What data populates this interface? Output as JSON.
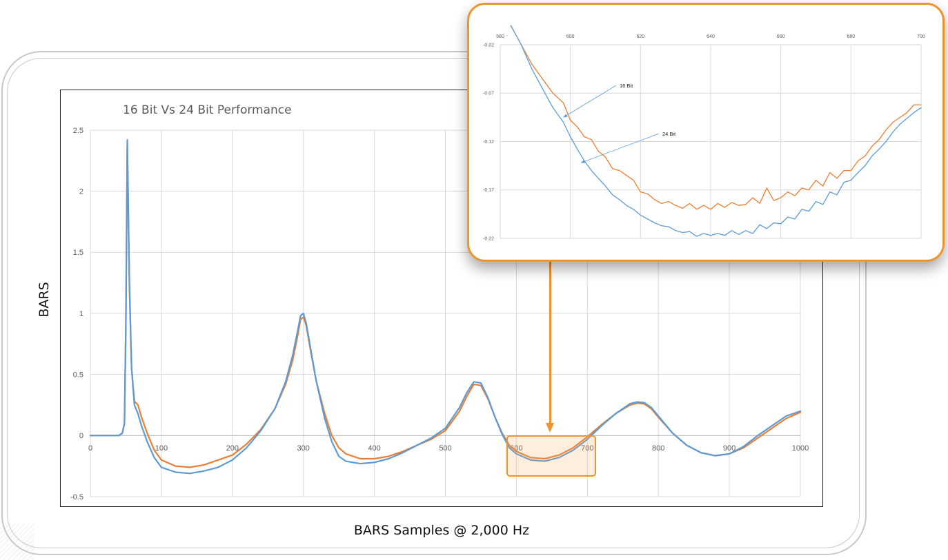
{
  "colors": {
    "bit16": "#ED7D31",
    "bit24": "#5B9BD5",
    "accent": "#F0932B",
    "grid": "#D9D9D9"
  },
  "main_chart": {
    "title": "16 Bit Vs 24 Bit Performance",
    "ylabel": "BARS",
    "xlabel": "BARS Samples @ 2,000 Hz"
  },
  "chart_data": [
    {
      "type": "line",
      "title": "16 Bit Vs 24 Bit Performance",
      "xlabel": "BARS Samples @ 2,000 Hz",
      "ylabel": "BARS",
      "xlim": [
        0,
        1000
      ],
      "ylim": [
        -0.5,
        2.5
      ],
      "xticks": [
        "0",
        "100",
        "200",
        "300",
        "400",
        "500",
        "600",
        "700",
        "800",
        "900",
        "1000"
      ],
      "yticks": [
        "-0.5",
        "0",
        "0.5",
        "1",
        "1.5",
        "2",
        "2.5"
      ],
      "grid": true,
      "series": [
        {
          "color": "#ED7D31",
          "x": [
            0,
            20,
            40,
            45,
            48,
            50,
            52,
            55,
            58,
            62,
            67,
            72,
            80,
            90,
            100,
            120,
            140,
            160,
            180,
            200,
            220,
            240,
            260,
            275,
            285,
            292,
            296,
            300,
            304,
            310,
            318,
            330,
            340,
            350,
            360,
            380,
            400,
            420,
            440,
            460,
            480,
            500,
            520,
            530,
            540,
            550,
            560,
            570,
            580,
            590,
            600,
            620,
            640,
            660,
            680,
            700,
            720,
            740,
            760,
            770,
            780,
            790,
            800,
            820,
            840,
            860,
            880,
            900,
            920,
            940,
            960,
            980,
            1000
          ],
          "values": [
            0.0,
            0.0,
            0.0,
            0.02,
            0.1,
            0.9,
            2.38,
            1.2,
            0.55,
            0.28,
            0.25,
            0.15,
            0.02,
            -0.12,
            -0.2,
            -0.25,
            -0.26,
            -0.24,
            -0.2,
            -0.16,
            -0.07,
            0.05,
            0.22,
            0.42,
            0.62,
            0.82,
            0.95,
            0.97,
            0.9,
            0.7,
            0.45,
            0.18,
            0.0,
            -0.1,
            -0.15,
            -0.19,
            -0.19,
            -0.17,
            -0.13,
            -0.08,
            -0.03,
            0.04,
            0.2,
            0.32,
            0.42,
            0.41,
            0.3,
            0.15,
            0.02,
            -0.08,
            -0.13,
            -0.18,
            -0.19,
            -0.16,
            -0.1,
            -0.01,
            0.09,
            0.18,
            0.25,
            0.265,
            0.26,
            0.22,
            0.15,
            0.02,
            -0.08,
            -0.14,
            -0.165,
            -0.15,
            -0.1,
            -0.02,
            0.06,
            0.14,
            0.19
          ]
        },
        {
          "color": "#5B9BD5",
          "x": [
            0,
            20,
            40,
            45,
            48,
            50,
            52,
            55,
            58,
            62,
            67,
            72,
            80,
            90,
            100,
            120,
            140,
            160,
            180,
            200,
            220,
            240,
            260,
            275,
            285,
            292,
            296,
            300,
            304,
            310,
            318,
            330,
            340,
            350,
            360,
            380,
            400,
            420,
            440,
            460,
            480,
            500,
            520,
            530,
            540,
            550,
            560,
            570,
            580,
            590,
            600,
            620,
            640,
            660,
            680,
            700,
            720,
            740,
            760,
            770,
            780,
            790,
            800,
            820,
            840,
            860,
            880,
            900,
            920,
            940,
            960,
            980,
            1000
          ],
          "values": [
            0.0,
            0.0,
            0.0,
            0.02,
            0.1,
            0.9,
            2.42,
            1.25,
            0.55,
            0.25,
            0.18,
            0.08,
            -0.05,
            -0.18,
            -0.26,
            -0.3,
            -0.31,
            -0.29,
            -0.26,
            -0.2,
            -0.1,
            0.04,
            0.22,
            0.44,
            0.66,
            0.86,
            0.98,
            1.0,
            0.92,
            0.72,
            0.45,
            0.14,
            -0.05,
            -0.17,
            -0.21,
            -0.23,
            -0.22,
            -0.19,
            -0.14,
            -0.08,
            -0.02,
            0.06,
            0.23,
            0.35,
            0.44,
            0.43,
            0.31,
            0.15,
            0.01,
            -0.1,
            -0.15,
            -0.2,
            -0.21,
            -0.18,
            -0.12,
            -0.03,
            0.08,
            0.18,
            0.26,
            0.275,
            0.27,
            0.23,
            0.16,
            0.02,
            -0.08,
            -0.14,
            -0.165,
            -0.15,
            -0.09,
            0.0,
            0.08,
            0.16,
            0.2
          ]
        }
      ]
    },
    {
      "type": "line",
      "xlim": [
        580,
        700
      ],
      "ylim": [
        -0.22,
        -0.02
      ],
      "xticks": [
        "580",
        "600",
        "620",
        "640",
        "660",
        "680",
        "700"
      ],
      "yticks": [
        "-0.02",
        "-0.07",
        "-0.12",
        "-0.17",
        "-0.22"
      ],
      "grid": true,
      "annotations": [
        {
          "text": "16 Bit",
          "x": 598,
          "y": -0.095
        },
        {
          "text": "24 Bit",
          "x": 603,
          "y": -0.142
        }
      ],
      "series": [
        {
          "color": "#ED7D31",
          "x": [
            583,
            586,
            589,
            592,
            595,
            598,
            600,
            602,
            604,
            606,
            608,
            610,
            612,
            614,
            616,
            618,
            620,
            622,
            624,
            626,
            628,
            630,
            632,
            634,
            636,
            638,
            640,
            642,
            644,
            646,
            648,
            650,
            652,
            654,
            656,
            658,
            660,
            662,
            664,
            666,
            668,
            670,
            672,
            674,
            676,
            678,
            680,
            682,
            684,
            686,
            688,
            690,
            692,
            694,
            696,
            698,
            700
          ],
          "values": [
            0.0,
            -0.02,
            -0.04,
            -0.055,
            -0.07,
            -0.08,
            -0.098,
            -0.105,
            -0.115,
            -0.118,
            -0.13,
            -0.136,
            -0.148,
            -0.15,
            -0.155,
            -0.16,
            -0.172,
            -0.174,
            -0.18,
            -0.184,
            -0.182,
            -0.186,
            -0.189,
            -0.184,
            -0.19,
            -0.186,
            -0.19,
            -0.184,
            -0.188,
            -0.183,
            -0.186,
            -0.185,
            -0.178,
            -0.184,
            -0.168,
            -0.181,
            -0.178,
            -0.172,
            -0.176,
            -0.168,
            -0.17,
            -0.16,
            -0.166,
            -0.152,
            -0.158,
            -0.15,
            -0.15,
            -0.14,
            -0.135,
            -0.125,
            -0.118,
            -0.108,
            -0.1,
            -0.095,
            -0.09,
            -0.082,
            -0.082
          ]
        },
        {
          "color": "#5B9BD5",
          "x": [
            583,
            586,
            589,
            592,
            595,
            598,
            600,
            602,
            604,
            606,
            608,
            610,
            612,
            614,
            616,
            618,
            620,
            622,
            624,
            626,
            628,
            630,
            632,
            634,
            636,
            638,
            640,
            642,
            644,
            646,
            648,
            650,
            652,
            654,
            656,
            658,
            660,
            662,
            664,
            666,
            668,
            670,
            672,
            674,
            676,
            678,
            680,
            682,
            684,
            686,
            688,
            690,
            692,
            694,
            696,
            698,
            700
          ],
          "values": [
            0.0,
            -0.02,
            -0.045,
            -0.065,
            -0.085,
            -0.1,
            -0.115,
            -0.128,
            -0.14,
            -0.15,
            -0.158,
            -0.166,
            -0.175,
            -0.18,
            -0.186,
            -0.19,
            -0.196,
            -0.2,
            -0.204,
            -0.207,
            -0.208,
            -0.212,
            -0.214,
            -0.213,
            -0.218,
            -0.215,
            -0.217,
            -0.215,
            -0.217,
            -0.212,
            -0.216,
            -0.212,
            -0.215,
            -0.206,
            -0.21,
            -0.204,
            -0.205,
            -0.198,
            -0.2,
            -0.19,
            -0.192,
            -0.182,
            -0.185,
            -0.172,
            -0.175,
            -0.162,
            -0.16,
            -0.152,
            -0.145,
            -0.135,
            -0.128,
            -0.12,
            -0.11,
            -0.102,
            -0.096,
            -0.09,
            -0.085
          ]
        }
      ]
    }
  ]
}
